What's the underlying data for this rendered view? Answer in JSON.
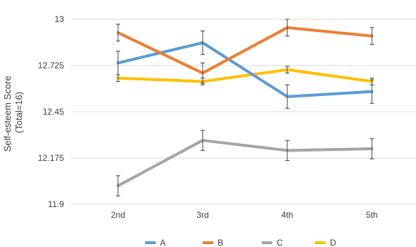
{
  "chart_data": {
    "type": "line",
    "categories": [
      "2nd",
      "3rd",
      "4th",
      "5th"
    ],
    "ylabel": "Self-esteem Score (Total=16)",
    "ylabel_lines": [
      "Self-esteem Score",
      "(Total=16)"
    ],
    "xlabel": "",
    "ylim": [
      11.9,
      13
    ],
    "yticks": [
      11.9,
      12.175,
      12.45,
      12.725,
      13
    ],
    "ytick_labels": [
      "11.9",
      "12.175",
      "12.45",
      "12.725",
      "13"
    ],
    "grid": "horizontal",
    "legend_position": "bottom",
    "series": [
      {
        "name": "A",
        "color": "#5B9BD5",
        "values": [
          12.74,
          12.86,
          12.54,
          12.57
        ],
        "errors": [
          0.07,
          0.07,
          0.07,
          0.07
        ]
      },
      {
        "name": "B",
        "color": "#ED7D31",
        "values": [
          12.92,
          12.68,
          12.95,
          12.9
        ],
        "errors": [
          0.05,
          0.06,
          0.05,
          0.05
        ]
      },
      {
        "name": "C",
        "color": "#A5A5A5",
        "values": [
          12.01,
          12.28,
          12.22,
          12.23
        ],
        "errors": [
          0.06,
          0.06,
          0.06,
          0.06
        ]
      },
      {
        "name": "D",
        "color": "#FFC000",
        "values": [
          12.65,
          12.63,
          12.7,
          12.63
        ],
        "errors": [
          0.02,
          0.02,
          0.02,
          0.02
        ]
      }
    ]
  }
}
